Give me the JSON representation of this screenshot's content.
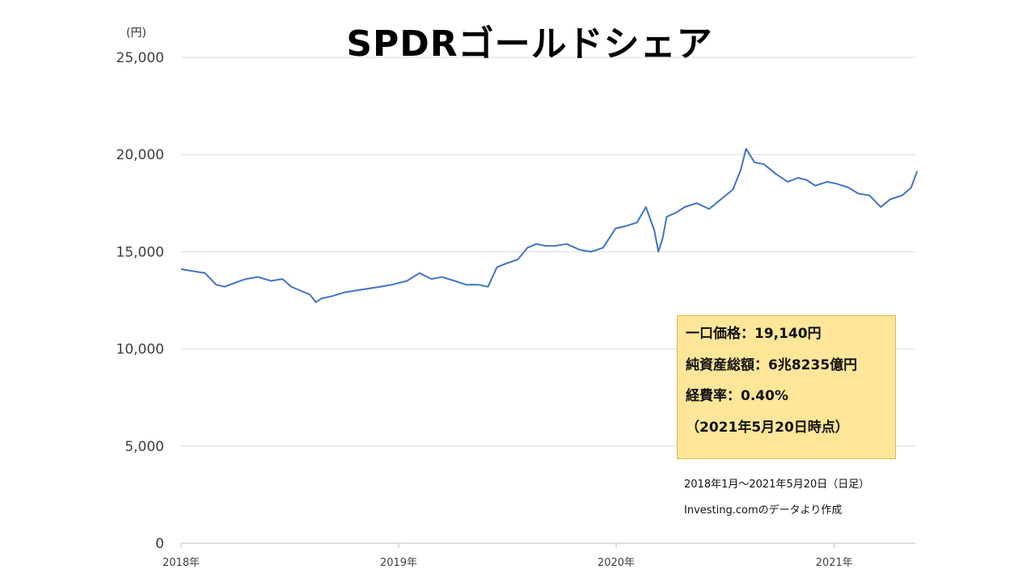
{
  "title": "SPDRゴールドシェア",
  "unit_label": "(円)",
  "info_box": {
    "lines": [
      "一口価格：19,140円",
      "純資産総額：6兆8235億円",
      "経費率：0.40%",
      "（2021年5月20日時点）"
    ]
  },
  "notes": [
    "2018年1月～2021年5月20日（日足）",
    "Investing.comのデータより作成"
  ],
  "colors": {
    "line": "#4472c4",
    "grid": "#d9d9d9",
    "info_bg": "#ffe699"
  },
  "chart_data": {
    "type": "line",
    "title": "SPDRゴールドシェア",
    "ylabel": "(円)",
    "xlabel": "",
    "ylim": [
      0,
      25000
    ],
    "yticks": [
      0,
      5000,
      10000,
      15000,
      20000,
      25000
    ],
    "ytick_labels": [
      "0",
      "5,000",
      "10,000",
      "15,000",
      "20,000",
      "25,000"
    ],
    "xticks": [
      "2018-01-01",
      "2019-01-01",
      "2020-01-01",
      "2021-01-01"
    ],
    "xtick_labels": [
      "2018年",
      "2019年",
      "2020年",
      "2021年"
    ],
    "xlim": [
      "2018-01-01",
      "2021-05-20"
    ],
    "grid": true,
    "legend": "none",
    "series": [
      {
        "x": [
          "2018-01-01",
          "2018-01-20",
          "2018-02-10",
          "2018-03-01",
          "2018-03-15",
          "2018-04-01",
          "2018-04-20",
          "2018-05-10",
          "2018-06-01",
          "2018-06-20",
          "2018-07-05",
          "2018-07-20",
          "2018-08-05",
          "2018-08-15",
          "2018-08-25",
          "2018-09-10",
          "2018-10-01",
          "2018-10-20",
          "2018-11-10",
          "2018-12-01",
          "2018-12-20",
          "2019-01-15",
          "2019-02-05",
          "2019-02-25",
          "2019-03-15",
          "2019-04-05",
          "2019-04-25",
          "2019-05-15",
          "2019-05-31",
          "2019-06-15",
          "2019-07-01",
          "2019-07-20",
          "2019-08-05",
          "2019-08-20",
          "2019-09-05",
          "2019-09-20",
          "2019-10-10",
          "2019-11-01",
          "2019-11-20",
          "2019-12-10",
          "2019-12-31",
          "2020-01-15",
          "2020-02-05",
          "2020-02-20",
          "2020-03-05",
          "2020-03-12",
          "2020-03-19",
          "2020-03-26",
          "2020-04-10",
          "2020-04-25",
          "2020-05-15",
          "2020-06-05",
          "2020-06-25",
          "2020-07-15",
          "2020-07-28",
          "2020-08-06",
          "2020-08-12",
          "2020-08-20",
          "2020-09-05",
          "2020-09-25",
          "2020-10-15",
          "2020-11-01",
          "2020-11-15",
          "2020-11-30",
          "2020-12-20",
          "2021-01-05",
          "2021-01-25",
          "2021-02-10",
          "2021-03-01",
          "2021-03-20",
          "2021-04-05",
          "2021-04-25",
          "2021-05-10",
          "2021-05-20"
        ],
        "values": [
          14100,
          14000,
          13900,
          13300,
          13200,
          13400,
          13600,
          13700,
          13500,
          13600,
          13200,
          13000,
          12800,
          12400,
          12600,
          12700,
          12900,
          13000,
          13100,
          13200,
          13300,
          13500,
          13900,
          13600,
          13700,
          13500,
          13300,
          13300,
          13200,
          14200,
          14400,
          14600,
          15200,
          15400,
          15300,
          15300,
          15400,
          15100,
          15000,
          15200,
          16200,
          16300,
          16500,
          17300,
          16100,
          15000,
          15700,
          16800,
          17000,
          17300,
          17500,
          17200,
          17700,
          18200,
          19200,
          20300,
          20000,
          19600,
          19500,
          19000,
          18600,
          18800,
          18700,
          18400,
          18600,
          18500,
          18300,
          18000,
          17900,
          17300,
          17700,
          17900,
          18300,
          19140
        ]
      }
    ]
  }
}
